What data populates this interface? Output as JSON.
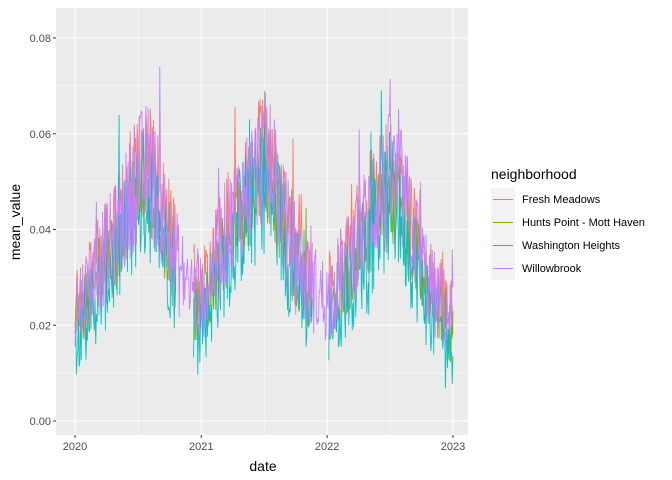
{
  "chart_data": {
    "type": "line",
    "xlabel": "date",
    "ylabel": "mean_value",
    "x_ticks": [
      "2020",
      "2021",
      "2022",
      "2023"
    ],
    "y_ticks": [
      "0.00",
      "0.02",
      "0.04",
      "0.06",
      "0.08"
    ],
    "x_range": [
      "2020-01-01",
      "2023-01-01"
    ],
    "ylim": [
      0.0,
      0.08
    ],
    "grid": true,
    "legend": {
      "title": "neighborhood",
      "placement": "right",
      "entries": [
        "Fresh Meadows",
        "Hunts Point - Mott Haven",
        "Washington Heights",
        "Willowbrook"
      ]
    },
    "series": [
      {
        "name": "Fresh Meadows",
        "color": "#F8766D"
      },
      {
        "name": "Hunts Point - Mott Haven",
        "color": "#7CAE00"
      },
      {
        "name": "Washington Heights",
        "color": "#00BFC4"
      },
      {
        "name": "Willowbrook",
        "color": "#C77CFF"
      }
    ],
    "trend": {
      "x": [
        "2020-01-01",
        "2020-03-01",
        "2020-05-01",
        "2020-07-01",
        "2020-08-01",
        "2020-09-01",
        "2020-11-01",
        "2021-01-01",
        "2021-03-01",
        "2021-05-01",
        "2021-07-01",
        "2021-08-01",
        "2021-09-01",
        "2021-11-01",
        "2022-01-01",
        "2022-03-01",
        "2022-05-01",
        "2022-07-01",
        "2022-08-01",
        "2022-09-01",
        "2022-11-01",
        "2023-01-01"
      ],
      "y": [
        0.022,
        0.03,
        0.038,
        0.05,
        0.052,
        0.045,
        0.03,
        0.024,
        0.036,
        0.046,
        0.054,
        0.05,
        0.04,
        0.028,
        0.024,
        0.032,
        0.042,
        0.05,
        0.048,
        0.04,
        0.026,
        0.02
      ]
    }
  }
}
